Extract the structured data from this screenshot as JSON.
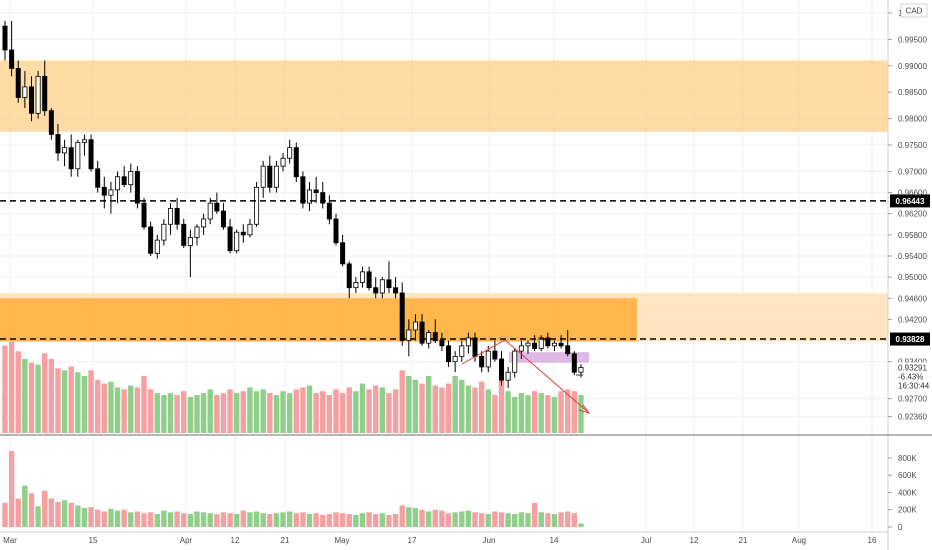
{
  "chart_data": {
    "type": "candlestick",
    "symbol_currency": "CAD",
    "price_axis_ticks": [
      "1.00000",
      "0.99500",
      "0.99000",
      "0.98500",
      "0.98000",
      "0.97500",
      "0.97000",
      "0.96600",
      "0.96200",
      "0.95800",
      "0.95400",
      "0.95000",
      "0.94600",
      "0.94200",
      "0.93400",
      "0.92700",
      "0.92360"
    ],
    "price_range": [
      0.9205,
      1.0015
    ],
    "date_ticks": [
      "Mar",
      "15",
      "Apr",
      "12",
      "21",
      "May",
      "17",
      "Jun",
      "14",
      "Jul",
      "12",
      "21",
      "Aug",
      "16"
    ],
    "volume_axis_ticks": [
      "800K",
      "600K",
      "400K",
      "200K",
      "0"
    ],
    "volume_range": [
      0,
      950000
    ],
    "levels": [
      {
        "label": "0.96443",
        "price": 0.96443
      },
      {
        "label": "0.93828",
        "price": 0.93828
      }
    ],
    "current_price": {
      "label": "0.93291",
      "change": "-6.43%",
      "countdown": "16:30:44",
      "price": 0.93291
    },
    "zones": [
      {
        "name": "upper-supply-zone",
        "from": 0.9775,
        "to": 0.991,
        "color": "#ffcc80"
      },
      {
        "name": "lower-supply-zone",
        "from": 0.9378,
        "to": 0.946,
        "color": "#ffa726"
      },
      {
        "name": "lower-zone-extension",
        "from": 0.9378,
        "to": 0.947,
        "color": "#ffe0b2"
      },
      {
        "name": "consolidation-box",
        "from": 0.9338,
        "to": 0.9358,
        "color": "#ce93d8"
      }
    ],
    "candles": [
      [
        0.9975,
        0.9985,
        0.991,
        0.993
      ],
      [
        0.993,
        0.9985,
        0.988,
        0.9895
      ],
      [
        0.9895,
        0.991,
        0.983,
        0.984
      ],
      [
        0.984,
        0.989,
        0.982,
        0.986
      ],
      [
        0.986,
        0.988,
        0.9795,
        0.981
      ],
      [
        0.981,
        0.989,
        0.98,
        0.988
      ],
      [
        0.988,
        0.991,
        0.9805,
        0.9815
      ],
      [
        0.9815,
        0.982,
        0.976,
        0.977
      ],
      [
        0.977,
        0.979,
        0.972,
        0.9735
      ],
      [
        0.9735,
        0.976,
        0.971,
        0.9745
      ],
      [
        0.9745,
        0.977,
        0.969,
        0.9705
      ],
      [
        0.9705,
        0.976,
        0.969,
        0.9755
      ],
      [
        0.9755,
        0.977,
        0.973,
        0.976
      ],
      [
        0.976,
        0.977,
        0.97,
        0.9705
      ],
      [
        0.9705,
        0.972,
        0.966,
        0.967
      ],
      [
        0.967,
        0.969,
        0.963,
        0.9655
      ],
      [
        0.9655,
        0.968,
        0.962,
        0.9665
      ],
      [
        0.9665,
        0.97,
        0.964,
        0.969
      ],
      [
        0.969,
        0.971,
        0.967,
        0.9675
      ],
      [
        0.9675,
        0.9715,
        0.966,
        0.97
      ],
      [
        0.97,
        0.971,
        0.963,
        0.964
      ],
      [
        0.964,
        0.965,
        0.959,
        0.9595
      ],
      [
        0.9595,
        0.9605,
        0.954,
        0.9545
      ],
      [
        0.9545,
        0.958,
        0.9535,
        0.957
      ],
      [
        0.957,
        0.961,
        0.956,
        0.96
      ],
      [
        0.96,
        0.964,
        0.958,
        0.963
      ],
      [
        0.963,
        0.965,
        0.959,
        0.96
      ],
      [
        0.96,
        0.961,
        0.9555,
        0.956
      ],
      [
        0.956,
        0.959,
        0.95,
        0.9575
      ],
      [
        0.9575,
        0.96,
        0.956,
        0.9595
      ],
      [
        0.9595,
        0.962,
        0.958,
        0.961
      ],
      [
        0.961,
        0.965,
        0.96,
        0.964
      ],
      [
        0.964,
        0.966,
        0.962,
        0.9625
      ],
      [
        0.9625,
        0.964,
        0.959,
        0.9595
      ],
      [
        0.9595,
        0.961,
        0.9545,
        0.955
      ],
      [
        0.955,
        0.959,
        0.9545,
        0.9585
      ],
      [
        0.9585,
        0.96,
        0.9565,
        0.958
      ],
      [
        0.958,
        0.961,
        0.9575,
        0.96
      ],
      [
        0.96,
        0.968,
        0.9595,
        0.967
      ],
      [
        0.967,
        0.972,
        0.965,
        0.971
      ],
      [
        0.971,
        0.973,
        0.966,
        0.967
      ],
      [
        0.967,
        0.972,
        0.966,
        0.971
      ],
      [
        0.971,
        0.9735,
        0.97,
        0.9725
      ],
      [
        0.9725,
        0.976,
        0.9715,
        0.9745
      ],
      [
        0.9745,
        0.9755,
        0.968,
        0.969
      ],
      [
        0.969,
        0.97,
        0.963,
        0.964
      ],
      [
        0.964,
        0.968,
        0.9625,
        0.9665
      ],
      [
        0.9665,
        0.969,
        0.964,
        0.966
      ],
      [
        0.966,
        0.968,
        0.963,
        0.964
      ],
      [
        0.964,
        0.9655,
        0.96,
        0.961
      ],
      [
        0.961,
        0.962,
        0.956,
        0.9565
      ],
      [
        0.9565,
        0.958,
        0.952,
        0.9525
      ],
      [
        0.9525,
        0.953,
        0.946,
        0.948
      ],
      [
        0.948,
        0.95,
        0.947,
        0.949
      ],
      [
        0.949,
        0.952,
        0.948,
        0.951
      ],
      [
        0.951,
        0.952,
        0.9475,
        0.948
      ],
      [
        0.948,
        0.95,
        0.946,
        0.947
      ],
      [
        0.947,
        0.95,
        0.946,
        0.9495
      ],
      [
        0.9495,
        0.953,
        0.947,
        0.948
      ],
      [
        0.948,
        0.95,
        0.946,
        0.947
      ],
      [
        0.947,
        0.949,
        0.937,
        0.938
      ],
      [
        0.938,
        0.942,
        0.935,
        0.94
      ],
      [
        0.94,
        0.943,
        0.938,
        0.9415
      ],
      [
        0.9415,
        0.943,
        0.937,
        0.9375
      ],
      [
        0.9375,
        0.94,
        0.9365,
        0.9395
      ],
      [
        0.9395,
        0.942,
        0.9375,
        0.938
      ],
      [
        0.938,
        0.9395,
        0.936,
        0.937
      ],
      [
        0.937,
        0.938,
        0.933,
        0.934
      ],
      [
        0.934,
        0.936,
        0.932,
        0.935
      ],
      [
        0.935,
        0.938,
        0.934,
        0.937
      ],
      [
        0.937,
        0.9395,
        0.9355,
        0.9385
      ],
      [
        0.9385,
        0.9395,
        0.934,
        0.935
      ],
      [
        0.935,
        0.936,
        0.932,
        0.933
      ],
      [
        0.933,
        0.937,
        0.932,
        0.936
      ],
      [
        0.936,
        0.938,
        0.934,
        0.9345
      ],
      [
        0.9345,
        0.936,
        0.9295,
        0.9305
      ],
      [
        0.9305,
        0.933,
        0.929,
        0.932
      ],
      [
        0.932,
        0.9365,
        0.931,
        0.936
      ],
      [
        0.936,
        0.938,
        0.9345,
        0.937
      ],
      [
        0.937,
        0.938,
        0.9355,
        0.9375
      ],
      [
        0.9375,
        0.939,
        0.936,
        0.9365
      ],
      [
        0.9365,
        0.939,
        0.936,
        0.9385
      ],
      [
        0.9385,
        0.9395,
        0.9365,
        0.937
      ],
      [
        0.937,
        0.938,
        0.936,
        0.9375
      ],
      [
        0.9375,
        0.939,
        0.9365,
        0.937
      ],
      [
        0.937,
        0.94,
        0.935,
        0.9355
      ],
      [
        0.9355,
        0.936,
        0.9315,
        0.932
      ],
      [
        0.932,
        0.9335,
        0.931,
        0.9329
      ]
    ],
    "volumes": [
      460,
      480,
      430,
      390,
      370,
      360,
      420,
      390,
      340,
      330,
      350,
      320,
      300,
      330,
      280,
      260,
      270,
      240,
      230,
      250,
      240,
      300,
      230,
      210,
      200,
      210,
      200,
      220,
      190,
      200,
      210,
      230,
      200,
      210,
      230,
      210,
      220,
      240,
      220,
      230,
      210,
      200,
      220,
      210,
      230,
      240,
      250,
      210,
      220,
      200,
      230,
      210,
      240,
      220,
      260,
      230,
      250,
      240,
      210,
      230,
      330,
      300,
      280,
      260,
      300,
      250,
      240,
      260,
      300,
      280,
      250,
      240,
      270,
      230,
      200,
      280,
      220,
      190,
      210,
      200,
      220,
      210,
      200,
      190,
      220,
      230,
      220,
      200
    ],
    "sub_volumes": [
      280,
      880,
      330,
      480,
      390,
      240,
      420,
      330,
      290,
      310,
      280,
      250,
      220,
      230,
      200,
      180,
      210,
      190,
      200,
      170,
      180,
      160,
      170,
      150,
      190,
      170,
      180,
      160,
      150,
      180,
      170,
      160,
      150,
      170,
      160,
      150,
      190,
      170,
      180,
      160,
      150,
      160,
      170,
      180,
      160,
      170,
      150,
      160,
      140,
      150,
      170,
      160,
      150,
      140,
      160,
      170,
      150,
      160,
      140,
      150,
      250,
      230,
      220,
      200,
      180,
      200,
      190,
      160,
      170,
      180,
      190,
      170,
      160,
      150,
      180,
      170,
      160,
      150,
      170,
      160,
      280,
      170,
      160,
      150,
      170,
      180,
      160,
      40
    ]
  }
}
